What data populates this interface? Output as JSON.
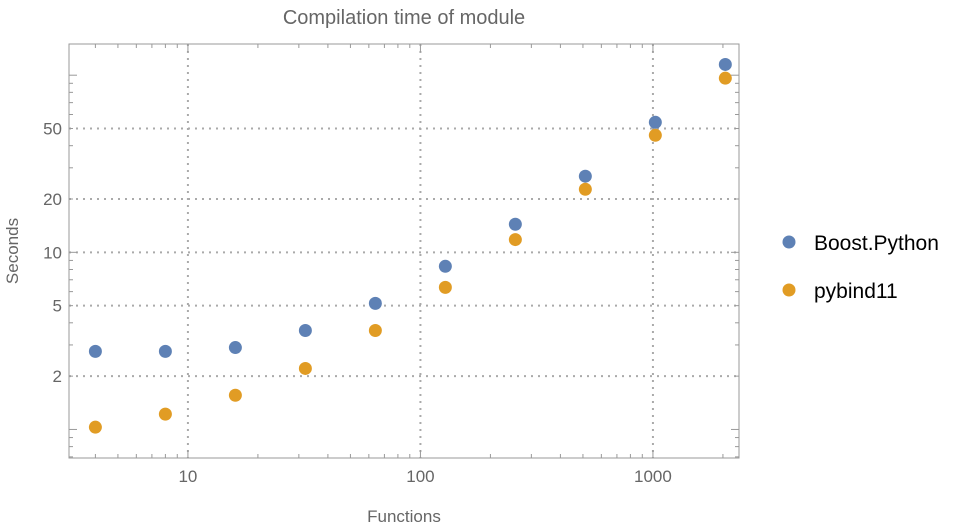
{
  "chart_data": {
    "type": "scatter",
    "title": "Compilation time of module",
    "xlabel": "Functions",
    "ylabel": "Seconds",
    "xscale": "log",
    "yscale": "log",
    "xlim": [
      3.08,
      2345
    ],
    "ylim": [
      0.69,
      150
    ],
    "grid": true,
    "legend": "right",
    "x_ticks": [
      10,
      100,
      1000
    ],
    "x_tick_labels": [
      "10",
      "100",
      "1000"
    ],
    "y_ticks": [
      2,
      5,
      10,
      20,
      50
    ],
    "y_tick_labels": [
      "2",
      "5",
      "10",
      "20",
      "50"
    ],
    "x": [
      4,
      8,
      16,
      32,
      64,
      128,
      256,
      512,
      1024,
      2048
    ],
    "series": [
      {
        "name": "Boost.Python",
        "color": "#5E81B5",
        "values": [
          2.76,
          2.76,
          2.9,
          3.62,
          5.15,
          8.34,
          14.4,
          26.9,
          54.2,
          115
        ]
      },
      {
        "name": "pybind11",
        "color": "#E19C24",
        "values": [
          1.03,
          1.22,
          1.56,
          2.21,
          3.62,
          6.34,
          11.8,
          22.7,
          45.8,
          96.2
        ]
      }
    ]
  }
}
